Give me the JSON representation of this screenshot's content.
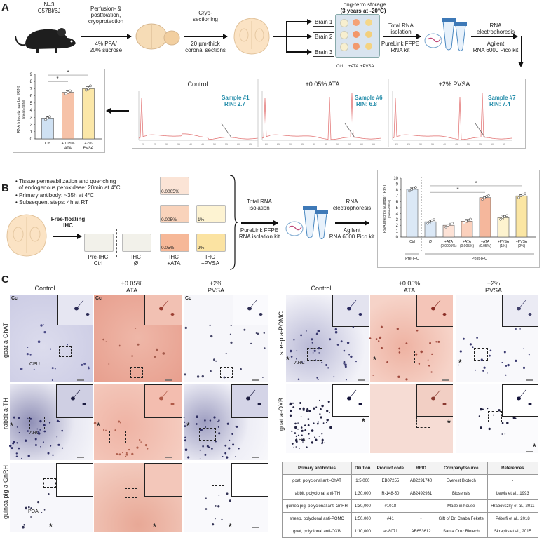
{
  "panelA": {
    "letter": "A",
    "mouse": {
      "line1": "N=3",
      "line2": "C57Bl/6J"
    },
    "step1": {
      "top": "Perfusion- &\npostfixation,\ncryoprotection",
      "bottom": "4% PFA/\n20% sucrose"
    },
    "step2": {
      "top": "Cryo-\nsectioning",
      "bottom": "20 µm-thick\ncoronal sections"
    },
    "brains": [
      "Brain 1",
      "Brain 2",
      "Brain 3"
    ],
    "storage": {
      "line1": "Long-term storage",
      "line2": "(3 years at -20°C)"
    },
    "plate_cols": [
      "Ctrl",
      "+ATA",
      "+PVSA"
    ],
    "step3": {
      "top": "Total RNA\nisolation",
      "bottom": "PureLink FFPE\nRNA kit"
    },
    "step4": {
      "top": "RNA\nelectrophoresis",
      "bottom": "Agilent\nRNA 6000 Pico kit"
    },
    "traces": [
      {
        "title": "Control",
        "sample": "Sample #1",
        "rin": "RIN: 2.7"
      },
      {
        "title": "+0.05% ATA",
        "sample": "Sample #6",
        "rin": "RIN: 6.8"
      },
      {
        "title": "+2% PVSA",
        "sample": "Sample #7",
        "rin": "RIN: 7.4"
      }
    ],
    "trace_ticks": [
      "20",
      "25",
      "30",
      "35",
      "40",
      "45",
      "50",
      "55",
      "60",
      "65"
    ],
    "star": "*"
  },
  "chartA": {
    "type": "bar",
    "categories": [
      "Ctrl",
      "+0.05%\nATA",
      "+2%\nPVSA"
    ],
    "values": [
      2.9,
      6.5,
      7.0
    ],
    "errors": [
      0.2,
      0.2,
      0.3
    ],
    "points": [
      [
        2.7,
        2.9,
        3.1
      ],
      [
        6.3,
        6.5,
        6.7
      ],
      [
        6.8,
        7.0,
        7.4
      ]
    ],
    "colors": [
      "#cfe1f3",
      "#f6c2a8",
      "#fbe7a8"
    ],
    "ylim": [
      0,
      9
    ],
    "yticks": [
      0,
      1,
      2,
      3,
      4,
      5,
      6,
      7,
      8,
      9
    ],
    "ylabel": "RNA Integrity number (RIN)",
    "ylabel2": "(mean±SEM)",
    "sig": [
      "*",
      "*"
    ]
  },
  "panelB": {
    "letter": "B",
    "bullets": [
      "Tissue permeabilization and quenching\n  of endogenous peroxidase: 20min at 4°C",
      "Primary antibody: ~35h at 4°C",
      "Subsequent steps: 4h at RT"
    ],
    "ihc_label": "Free-floating\nIHC",
    "dishes": [
      "Pre-IHC\nCtrl",
      "IHC\nØ",
      "IHC\n+ATA",
      "IHC\n+PVSA"
    ],
    "ata_conc": [
      "0.0005%",
      "0.005%",
      "0.05%"
    ],
    "pvsa_conc": [
      "1%",
      "2%"
    ],
    "step3": {
      "top": "Total RNA\nisolation",
      "bottom": "PureLink FFPE\nRNA isolation kit"
    },
    "step4": {
      "top": "RNA\nelectrophoresis",
      "bottom": "Agilent\nRNA 6000 Pico kit"
    }
  },
  "chartB": {
    "type": "bar",
    "categories": [
      "Ctrl",
      "Ø",
      "+ATA\n(0.0005%)",
      "+ATA\n(0.005%)",
      "+ATA\n(0.05%)",
      "+PVSA\n(1%)",
      "+PVSA\n(2%)"
    ],
    "values": [
      8.1,
      2.6,
      2.0,
      2.7,
      6.7,
      3.3,
      7.0
    ],
    "errors": [
      0.25,
      0.3,
      0.05,
      0.3,
      0.2,
      0.4,
      0.2
    ],
    "colors": [
      "#dbe8f6",
      "#dbe8f6",
      "#fde2d6",
      "#fbd0bc",
      "#f5b79c",
      "#fdf3cf",
      "#fbe6a3"
    ],
    "ylim": [
      0,
      10
    ],
    "yticks": [
      0,
      1,
      2,
      3,
      4,
      5,
      6,
      7,
      8,
      9,
      10
    ],
    "ylabel": "RNA Integrity Number (RIN)",
    "ylabel2": "(mean±SEM)",
    "group1": "Pre-IHC",
    "group2": "Post-IHC",
    "sig": [
      "*",
      "*"
    ]
  },
  "panelC": {
    "letter": "C",
    "colHeadersLeft": [
      "Control",
      "+0.05%\nATA",
      "+2%\nPVSA"
    ],
    "colHeadersRight": [
      "Control",
      "+0.05%\nATA",
      "+2%\nPVSA"
    ],
    "rowsLeft": [
      "goat a-ChAT",
      "rabbit a-TH",
      "guinea pig a-GnRH"
    ],
    "rowsRight": [
      "sheep a-POMC",
      "goat a-OXB"
    ],
    "regions": {
      "cc": "Cc",
      "cpu": "CPU",
      "arc": "ARC",
      "poa": "POA",
      "lha": "LHA"
    },
    "star": "*"
  },
  "table": {
    "headers": [
      "Primary antibodies",
      "Dilution",
      "Product code",
      "RRID",
      "Company/Source",
      "References"
    ],
    "rows": [
      [
        "goat, polyclonal anti-ChAT",
        "1:5,000",
        "EB07255",
        "AB2291740",
        "Everest Biotech",
        "-"
      ],
      [
        "rabbit, polyclonal anti-TH",
        "1:30,000",
        "R-148-50",
        "AB2492931",
        "Biosensis",
        "Lewis et al., 1993"
      ],
      [
        "guinea pig, polyclonal anti-GnRH",
        "1:30,000",
        "#1018",
        "-",
        "Made in house",
        "Hrabovszky et al., 2011"
      ],
      [
        "sheep, polyclonal anti-POMC",
        "1:50,000",
        "#41",
        "-",
        "Gift of Dr. Csaba Fekete",
        "Péterfi et al., 2018"
      ],
      [
        "goat, polyclonal anti-OXB",
        "1:10,000",
        "sc-8071",
        "AB653612",
        "Santa Cruz Biotech",
        "Skrapits et al., 2015"
      ]
    ]
  }
}
